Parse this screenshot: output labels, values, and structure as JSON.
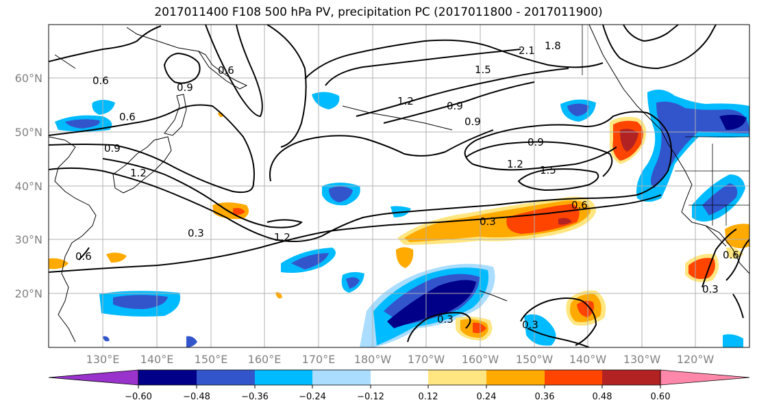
{
  "title": "2017011400 F108 500 hPa PV, precipitation PC (2017011800 - 2017011900)",
  "latitude_labels": [
    "60°N",
    "50°N",
    "40°N",
    "30°N",
    "20°N"
  ],
  "longitude_labels": [
    "130°E",
    "140°E",
    "150°E",
    "160°E",
    "170°E",
    "180°W",
    "170°W",
    "160°W",
    "150°W",
    "140°W",
    "130°W",
    "120°W"
  ],
  "colorbar": {
    "colors": [
      "#9933cc",
      "#000088",
      "#3355cc",
      "#00bbff",
      "#aaddff",
      "#ffffff",
      "#ffe680",
      "#ffaa00",
      "#ff4400",
      "#b22222",
      "#ff88aa"
    ],
    "tick_labels": [
      "−0.60",
      "−0.48",
      "−0.36",
      "−0.24",
      "−0.12",
      "0.12",
      "0.24",
      "0.36",
      "0.48",
      "0.60"
    ]
  },
  "contour_labels": [
    "0.6",
    "0.9",
    "0.6",
    "0.6",
    "0.9",
    "1.2",
    "0.3",
    "1.2",
    "0.6",
    "2.1",
    "1.8",
    "1.5",
    "1.2",
    "0.9",
    "0.9",
    "0.9",
    "1.2",
    "1.5",
    "0.6",
    "0.3",
    "0.3",
    "0.3",
    "0.3",
    "0.6"
  ]
}
